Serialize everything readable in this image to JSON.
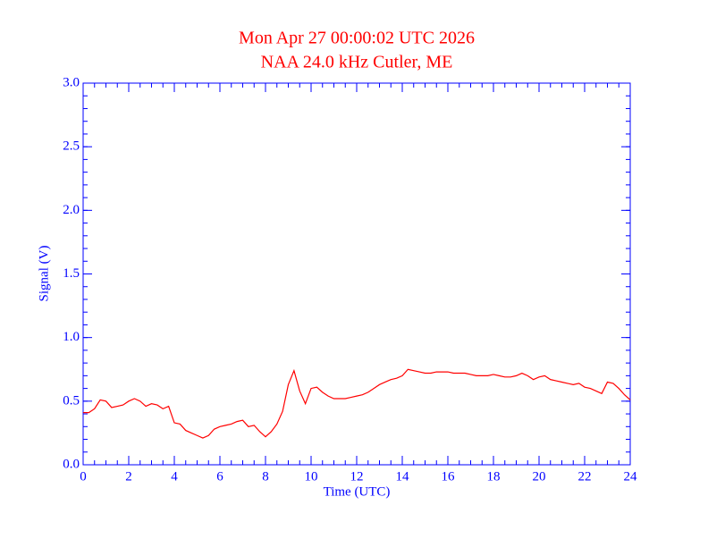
{
  "chart_data": {
    "type": "line",
    "title": "Mon Apr 27 00:00:02 UTC 2026",
    "subtitle": "NAA 24.0 kHz Cutler, ME",
    "xlabel": "Time (UTC)",
    "ylabel": "Signal (V)",
    "xlim": [
      0,
      24
    ],
    "xticks": [
      0,
      2,
      4,
      6,
      8,
      10,
      12,
      14,
      16,
      18,
      20,
      22,
      24
    ],
    "ylim": [
      0,
      3
    ],
    "yticks": [
      {
        "value": 0,
        "label": "0.0"
      },
      0.5,
      {
        "value": 1,
        "label": "1.0"
      },
      1.5,
      {
        "value": 2,
        "label": "2.0"
      },
      2.5,
      {
        "value": 3,
        "label": "3.0"
      }
    ],
    "axis_color": "#0000ff",
    "title_color": "#ff0000",
    "x": [
      0,
      0.25,
      0.5,
      0.75,
      1,
      1.25,
      1.5,
      1.75,
      2,
      2.25,
      2.5,
      2.75,
      3,
      3.25,
      3.5,
      3.75,
      4,
      4.25,
      4.5,
      4.75,
      5,
      5.25,
      5.5,
      5.75,
      6,
      6.25,
      6.5,
      6.75,
      7,
      7.25,
      7.5,
      7.75,
      8,
      8.25,
      8.5,
      8.75,
      9,
      9.25,
      9.5,
      9.75,
      10,
      10.25,
      10.5,
      10.75,
      11,
      11.25,
      11.5,
      11.75,
      12,
      12.25,
      12.5,
      12.75,
      13,
      13.25,
      13.5,
      13.75,
      14,
      14.25,
      14.5,
      14.75,
      15,
      15.25,
      15.5,
      15.75,
      16,
      16.25,
      16.5,
      16.75,
      17,
      17.25,
      17.5,
      17.75,
      18,
      18.25,
      18.5,
      18.75,
      19,
      19.25,
      19.5,
      19.75,
      20,
      20.25,
      20.5,
      20.75,
      21,
      21.25,
      21.5,
      21.75,
      22,
      22.25,
      22.5,
      22.75,
      23,
      23.25,
      23.5,
      23.75,
      24
    ],
    "series": [
      {
        "color": "#ff0000",
        "values": [
          0.41,
          0.41,
          0.44,
          0.51,
          0.5,
          0.45,
          0.46,
          0.47,
          0.5,
          0.52,
          0.5,
          0.46,
          0.48,
          0.47,
          0.44,
          0.46,
          0.33,
          0.32,
          0.27,
          0.25,
          0.23,
          0.21,
          0.23,
          0.28,
          0.3,
          0.31,
          0.32,
          0.34,
          0.35,
          0.3,
          0.31,
          0.26,
          0.22,
          0.26,
          0.32,
          0.42,
          0.63,
          0.74,
          0.58,
          0.48,
          0.6,
          0.61,
          0.57,
          0.54,
          0.52,
          0.52,
          0.52,
          0.53,
          0.54,
          0.55,
          0.57,
          0.6,
          0.63,
          0.65,
          0.67,
          0.68,
          0.7,
          0.75,
          0.74,
          0.73,
          0.72,
          0.72,
          0.73,
          0.73,
          0.73,
          0.72,
          0.72,
          0.72,
          0.71,
          0.7,
          0.7,
          0.7,
          0.71,
          0.7,
          0.69,
          0.69,
          0.7,
          0.72,
          0.7,
          0.67,
          0.69,
          0.7,
          0.67,
          0.66,
          0.65,
          0.64,
          0.63,
          0.64,
          0.61,
          0.6,
          0.58,
          0.56,
          0.65,
          0.64,
          0.6,
          0.55,
          0.51
        ]
      }
    ]
  }
}
